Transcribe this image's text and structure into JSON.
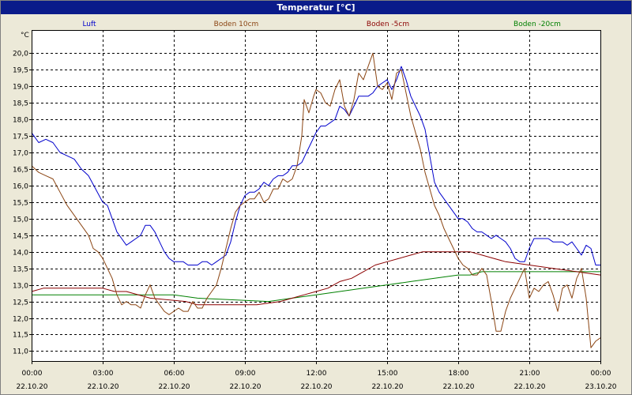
{
  "window": {
    "title": "Temperatur [°C]"
  },
  "colors": {
    "background": "#ece9d8",
    "plot_background": "#ffffff",
    "titlebar": "#0a1b8a",
    "luft": "#0000cc",
    "boden10": "#8b4513",
    "boden5": "#8b0000",
    "boden20": "#008000"
  },
  "chart_data": {
    "type": "line",
    "title": "Temperatur [°C]",
    "ylabel": "°C",
    "xlabel": "",
    "ylim": [
      10.7,
      20.7
    ],
    "xlim": [
      0,
      24
    ],
    "grid": true,
    "legend_placement": "top",
    "y_ticks": [
      "11,0",
      "11,5",
      "12,0",
      "12,5",
      "13,0",
      "13,5",
      "14,0",
      "14,5",
      "15,0",
      "15,5",
      "16,0",
      "16,5",
      "17,0",
      "17,5",
      "18,0",
      "18,5",
      "19,0",
      "19,5",
      "20,0"
    ],
    "y_tick_values": [
      11.0,
      11.5,
      12.0,
      12.5,
      13.0,
      13.5,
      14.0,
      14.5,
      15.0,
      15.5,
      16.0,
      16.5,
      17.0,
      17.5,
      18.0,
      18.5,
      19.0,
      19.5,
      20.0
    ],
    "x_ticks": [
      {
        "hour": 0,
        "time": "00:00",
        "date": "22.10.20"
      },
      {
        "hour": 3,
        "time": "03:00",
        "date": "22.10.20"
      },
      {
        "hour": 6,
        "time": "06:00",
        "date": "22.10.20"
      },
      {
        "hour": 9,
        "time": "09:00",
        "date": "22.10.20"
      },
      {
        "hour": 12,
        "time": "12:00",
        "date": "22.10.20"
      },
      {
        "hour": 15,
        "time": "15:00",
        "date": "22.10.20"
      },
      {
        "hour": 18,
        "time": "18:00",
        "date": "22.10.20"
      },
      {
        "hour": 21,
        "time": "21:00",
        "date": "22.10.20"
      },
      {
        "hour": 24,
        "time": "00:00",
        "date": "23.10.20"
      }
    ],
    "series": [
      {
        "name": "Luft",
        "color": "#0000cc",
        "points": [
          [
            0,
            17.6
          ],
          [
            0.3,
            17.3
          ],
          [
            0.6,
            17.4
          ],
          [
            0.9,
            17.3
          ],
          [
            1.2,
            17.0
          ],
          [
            1.5,
            16.9
          ],
          [
            1.8,
            16.8
          ],
          [
            2.1,
            16.5
          ],
          [
            2.4,
            16.3
          ],
          [
            2.7,
            15.9
          ],
          [
            3.0,
            15.5
          ],
          [
            3.2,
            15.4
          ],
          [
            3.4,
            15.0
          ],
          [
            3.6,
            14.6
          ],
          [
            3.8,
            14.4
          ],
          [
            4.0,
            14.2
          ],
          [
            4.2,
            14.3
          ],
          [
            4.4,
            14.4
          ],
          [
            4.6,
            14.5
          ],
          [
            4.8,
            14.8
          ],
          [
            5.0,
            14.8
          ],
          [
            5.2,
            14.6
          ],
          [
            5.4,
            14.3
          ],
          [
            5.6,
            14.0
          ],
          [
            5.8,
            13.8
          ],
          [
            6.0,
            13.7
          ],
          [
            6.2,
            13.7
          ],
          [
            6.4,
            13.7
          ],
          [
            6.6,
            13.6
          ],
          [
            6.8,
            13.6
          ],
          [
            7.0,
            13.6
          ],
          [
            7.2,
            13.7
          ],
          [
            7.4,
            13.7
          ],
          [
            7.6,
            13.6
          ],
          [
            7.8,
            13.7
          ],
          [
            8.0,
            13.8
          ],
          [
            8.2,
            13.9
          ],
          [
            8.4,
            14.3
          ],
          [
            8.6,
            14.9
          ],
          [
            8.8,
            15.4
          ],
          [
            9.0,
            15.7
          ],
          [
            9.2,
            15.8
          ],
          [
            9.4,
            15.8
          ],
          [
            9.6,
            15.9
          ],
          [
            9.8,
            16.1
          ],
          [
            10.0,
            16.0
          ],
          [
            10.2,
            16.2
          ],
          [
            10.4,
            16.3
          ],
          [
            10.6,
            16.3
          ],
          [
            10.8,
            16.4
          ],
          [
            11.0,
            16.6
          ],
          [
            11.2,
            16.6
          ],
          [
            11.4,
            16.7
          ],
          [
            11.6,
            17.0
          ],
          [
            11.8,
            17.3
          ],
          [
            12.0,
            17.6
          ],
          [
            12.2,
            17.8
          ],
          [
            12.4,
            17.8
          ],
          [
            12.6,
            17.9
          ],
          [
            12.8,
            18.0
          ],
          [
            13.0,
            18.4
          ],
          [
            13.2,
            18.3
          ],
          [
            13.4,
            18.1
          ],
          [
            13.6,
            18.4
          ],
          [
            13.8,
            18.7
          ],
          [
            14.0,
            18.7
          ],
          [
            14.2,
            18.7
          ],
          [
            14.4,
            18.8
          ],
          [
            14.6,
            19.0
          ],
          [
            14.8,
            19.1
          ],
          [
            15.0,
            19.2
          ],
          [
            15.2,
            18.9
          ],
          [
            15.4,
            19.2
          ],
          [
            15.6,
            19.6
          ],
          [
            15.8,
            19.2
          ],
          [
            16.0,
            18.7
          ],
          [
            16.2,
            18.4
          ],
          [
            16.4,
            18.1
          ],
          [
            16.6,
            17.7
          ],
          [
            16.8,
            16.9
          ],
          [
            17.0,
            16.1
          ],
          [
            17.2,
            15.8
          ],
          [
            17.4,
            15.6
          ],
          [
            17.6,
            15.4
          ],
          [
            17.8,
            15.2
          ],
          [
            18.0,
            15.0
          ],
          [
            18.2,
            15.0
          ],
          [
            18.4,
            14.9
          ],
          [
            18.6,
            14.7
          ],
          [
            18.8,
            14.6
          ],
          [
            19.0,
            14.6
          ],
          [
            19.2,
            14.5
          ],
          [
            19.4,
            14.4
          ],
          [
            19.6,
            14.5
          ],
          [
            19.8,
            14.4
          ],
          [
            20.0,
            14.3
          ],
          [
            20.2,
            14.1
          ],
          [
            20.4,
            13.8
          ],
          [
            20.6,
            13.7
          ],
          [
            20.8,
            13.7
          ],
          [
            21.0,
            14.1
          ],
          [
            21.2,
            14.4
          ],
          [
            21.4,
            14.4
          ],
          [
            21.6,
            14.4
          ],
          [
            21.8,
            14.4
          ],
          [
            22.0,
            14.3
          ],
          [
            22.2,
            14.3
          ],
          [
            22.4,
            14.3
          ],
          [
            22.6,
            14.2
          ],
          [
            22.8,
            14.3
          ],
          [
            23.0,
            14.1
          ],
          [
            23.2,
            13.9
          ],
          [
            23.4,
            14.2
          ],
          [
            23.6,
            14.1
          ],
          [
            23.8,
            13.6
          ],
          [
            24.0,
            13.6
          ]
        ]
      },
      {
        "name": "Boden 10cm",
        "color": "#8b4513",
        "points": [
          [
            0,
            16.6
          ],
          [
            0.3,
            16.4
          ],
          [
            0.6,
            16.3
          ],
          [
            0.9,
            16.2
          ],
          [
            1.2,
            15.8
          ],
          [
            1.5,
            15.4
          ],
          [
            1.8,
            15.1
          ],
          [
            2.1,
            14.8
          ],
          [
            2.4,
            14.5
          ],
          [
            2.6,
            14.1
          ],
          [
            2.8,
            14.0
          ],
          [
            3.0,
            13.8
          ],
          [
            3.2,
            13.5
          ],
          [
            3.4,
            13.2
          ],
          [
            3.6,
            12.7
          ],
          [
            3.8,
            12.4
          ],
          [
            4.0,
            12.5
          ],
          [
            4.2,
            12.4
          ],
          [
            4.4,
            12.4
          ],
          [
            4.6,
            12.3
          ],
          [
            4.8,
            12.7
          ],
          [
            5.0,
            13.0
          ],
          [
            5.2,
            12.6
          ],
          [
            5.4,
            12.4
          ],
          [
            5.6,
            12.2
          ],
          [
            5.8,
            12.1
          ],
          [
            6.0,
            12.2
          ],
          [
            6.2,
            12.3
          ],
          [
            6.4,
            12.2
          ],
          [
            6.6,
            12.2
          ],
          [
            6.8,
            12.5
          ],
          [
            7.0,
            12.3
          ],
          [
            7.2,
            12.3
          ],
          [
            7.4,
            12.6
          ],
          [
            7.6,
            12.8
          ],
          [
            7.8,
            13.0
          ],
          [
            8.0,
            13.5
          ],
          [
            8.2,
            14.1
          ],
          [
            8.4,
            14.7
          ],
          [
            8.6,
            15.2
          ],
          [
            8.8,
            15.4
          ],
          [
            9.0,
            15.5
          ],
          [
            9.2,
            15.6
          ],
          [
            9.4,
            15.6
          ],
          [
            9.6,
            15.8
          ],
          [
            9.8,
            15.5
          ],
          [
            10.0,
            15.6
          ],
          [
            10.2,
            15.9
          ],
          [
            10.4,
            15.9
          ],
          [
            10.6,
            16.2
          ],
          [
            10.8,
            16.1
          ],
          [
            11.0,
            16.2
          ],
          [
            11.2,
            16.6
          ],
          [
            11.4,
            17.5
          ],
          [
            11.5,
            18.6
          ],
          [
            11.7,
            18.2
          ],
          [
            11.9,
            18.7
          ],
          [
            12.0,
            18.9
          ],
          [
            12.2,
            18.8
          ],
          [
            12.4,
            18.5
          ],
          [
            12.6,
            18.4
          ],
          [
            12.8,
            18.9
          ],
          [
            13.0,
            19.2
          ],
          [
            13.2,
            18.4
          ],
          [
            13.4,
            18.1
          ],
          [
            13.6,
            18.6
          ],
          [
            13.8,
            19.4
          ],
          [
            14.0,
            19.2
          ],
          [
            14.2,
            19.6
          ],
          [
            14.4,
            20.0
          ],
          [
            14.6,
            19.0
          ],
          [
            14.8,
            18.9
          ],
          [
            15.0,
            19.1
          ],
          [
            15.2,
            18.6
          ],
          [
            15.4,
            19.4
          ],
          [
            15.6,
            19.5
          ],
          [
            15.8,
            18.8
          ],
          [
            16.0,
            18.1
          ],
          [
            16.2,
            17.6
          ],
          [
            16.4,
            17.1
          ],
          [
            16.6,
            16.4
          ],
          [
            16.8,
            15.9
          ],
          [
            17.0,
            15.4
          ],
          [
            17.2,
            15.1
          ],
          [
            17.4,
            14.7
          ],
          [
            17.6,
            14.4
          ],
          [
            17.8,
            14.1
          ],
          [
            18.0,
            13.8
          ],
          [
            18.2,
            13.6
          ],
          [
            18.4,
            13.5
          ],
          [
            18.6,
            13.3
          ],
          [
            18.8,
            13.3
          ],
          [
            19.0,
            13.5
          ],
          [
            19.2,
            13.3
          ],
          [
            19.4,
            12.5
          ],
          [
            19.6,
            11.6
          ],
          [
            19.8,
            11.6
          ],
          [
            20.0,
            12.2
          ],
          [
            20.2,
            12.6
          ],
          [
            20.4,
            12.9
          ],
          [
            20.6,
            13.2
          ],
          [
            20.8,
            13.5
          ],
          [
            21.0,
            12.6
          ],
          [
            21.2,
            12.9
          ],
          [
            21.4,
            12.8
          ],
          [
            21.6,
            13.0
          ],
          [
            21.8,
            13.1
          ],
          [
            22.0,
            12.7
          ],
          [
            22.2,
            12.2
          ],
          [
            22.4,
            12.9
          ],
          [
            22.6,
            13.0
          ],
          [
            22.8,
            12.6
          ],
          [
            23.0,
            13.2
          ],
          [
            23.2,
            13.5
          ],
          [
            23.4,
            12.6
          ],
          [
            23.6,
            11.1
          ],
          [
            23.8,
            11.3
          ],
          [
            24.0,
            11.4
          ]
        ]
      },
      {
        "name": "Boden -5cm",
        "color": "#8b0000",
        "points": [
          [
            0,
            12.8
          ],
          [
            0.5,
            12.9
          ],
          [
            3.0,
            12.9
          ],
          [
            3.5,
            12.8
          ],
          [
            4.0,
            12.8
          ],
          [
            5.0,
            12.6
          ],
          [
            6.5,
            12.5
          ],
          [
            7.0,
            12.4
          ],
          [
            9.5,
            12.4
          ],
          [
            10.5,
            12.5
          ],
          [
            11.0,
            12.6
          ],
          [
            11.5,
            12.7
          ],
          [
            12.0,
            12.8
          ],
          [
            12.5,
            12.9
          ],
          [
            13.0,
            13.1
          ],
          [
            13.5,
            13.2
          ],
          [
            14.0,
            13.4
          ],
          [
            14.5,
            13.6
          ],
          [
            15.0,
            13.7
          ],
          [
            15.5,
            13.8
          ],
          [
            16.0,
            13.9
          ],
          [
            16.5,
            14.0
          ],
          [
            18.5,
            14.0
          ],
          [
            19.0,
            13.9
          ],
          [
            19.5,
            13.8
          ],
          [
            20.0,
            13.7
          ],
          [
            21.0,
            13.6
          ],
          [
            22.0,
            13.5
          ],
          [
            23.0,
            13.4
          ],
          [
            24.0,
            13.3
          ]
        ]
      },
      {
        "name": "Boden -20cm",
        "color": "#008000",
        "points": [
          [
            0,
            12.7
          ],
          [
            6.0,
            12.7
          ],
          [
            7.0,
            12.6
          ],
          [
            10.0,
            12.5
          ],
          [
            11.0,
            12.6
          ],
          [
            12.0,
            12.7
          ],
          [
            13.0,
            12.8
          ],
          [
            14.0,
            12.9
          ],
          [
            15.0,
            13.0
          ],
          [
            16.0,
            13.1
          ],
          [
            17.0,
            13.2
          ],
          [
            18.0,
            13.3
          ],
          [
            18.5,
            13.3
          ],
          [
            19.0,
            13.4
          ],
          [
            24.0,
            13.4
          ]
        ]
      }
    ]
  }
}
